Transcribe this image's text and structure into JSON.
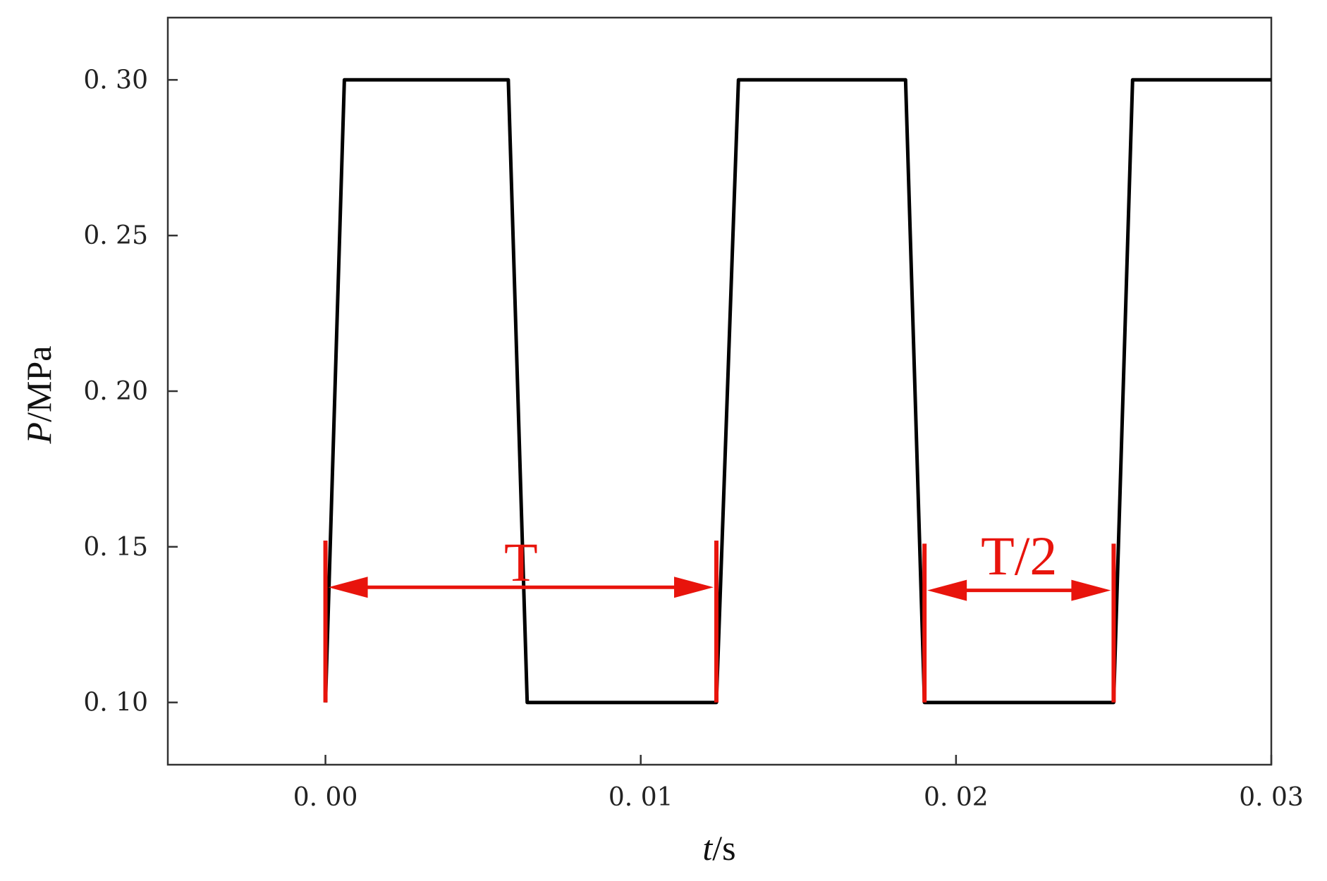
{
  "chart_data": {
    "type": "line",
    "title": "",
    "xlabel": "t/s",
    "ylabel": "P/MPa",
    "xlim": [
      -0.005,
      0.03
    ],
    "ylim": [
      0.08,
      0.32
    ],
    "grid": false,
    "x_ticks": [
      0.0,
      0.01,
      0.02,
      0.03
    ],
    "x_tick_labels": [
      "0. 00",
      "0. 01",
      "0. 02",
      "0. 03"
    ],
    "y_ticks": [
      0.1,
      0.15,
      0.2,
      0.25,
      0.3
    ],
    "y_tick_labels": [
      "0. 10",
      "0. 15",
      "0. 20",
      "0. 25",
      "0. 30"
    ],
    "series": [
      {
        "color": "#000000",
        "x": [
          0.0,
          0.0006,
          0.0058,
          0.0064,
          0.0124,
          0.0131,
          0.0184,
          0.019,
          0.025,
          0.0256,
          0.03
        ],
        "y": [
          0.1,
          0.3,
          0.3,
          0.1,
          0.1,
          0.3,
          0.3,
          0.1,
          0.1,
          0.3,
          0.3
        ]
      }
    ],
    "annotations": [
      {
        "label": "T",
        "x_start": 0.0,
        "x_end": 0.0124,
        "y_arrow": 0.137,
        "y_label": 0.145,
        "marker_y_from": 0.1,
        "marker_y_to": 0.152
      },
      {
        "label": "T/2",
        "x_start": 0.019,
        "x_end": 0.025,
        "y_arrow": 0.136,
        "y_label": 0.147,
        "marker_y_from": 0.1,
        "marker_y_to": 0.151
      }
    ],
    "annotation_color": "#e8140c"
  }
}
